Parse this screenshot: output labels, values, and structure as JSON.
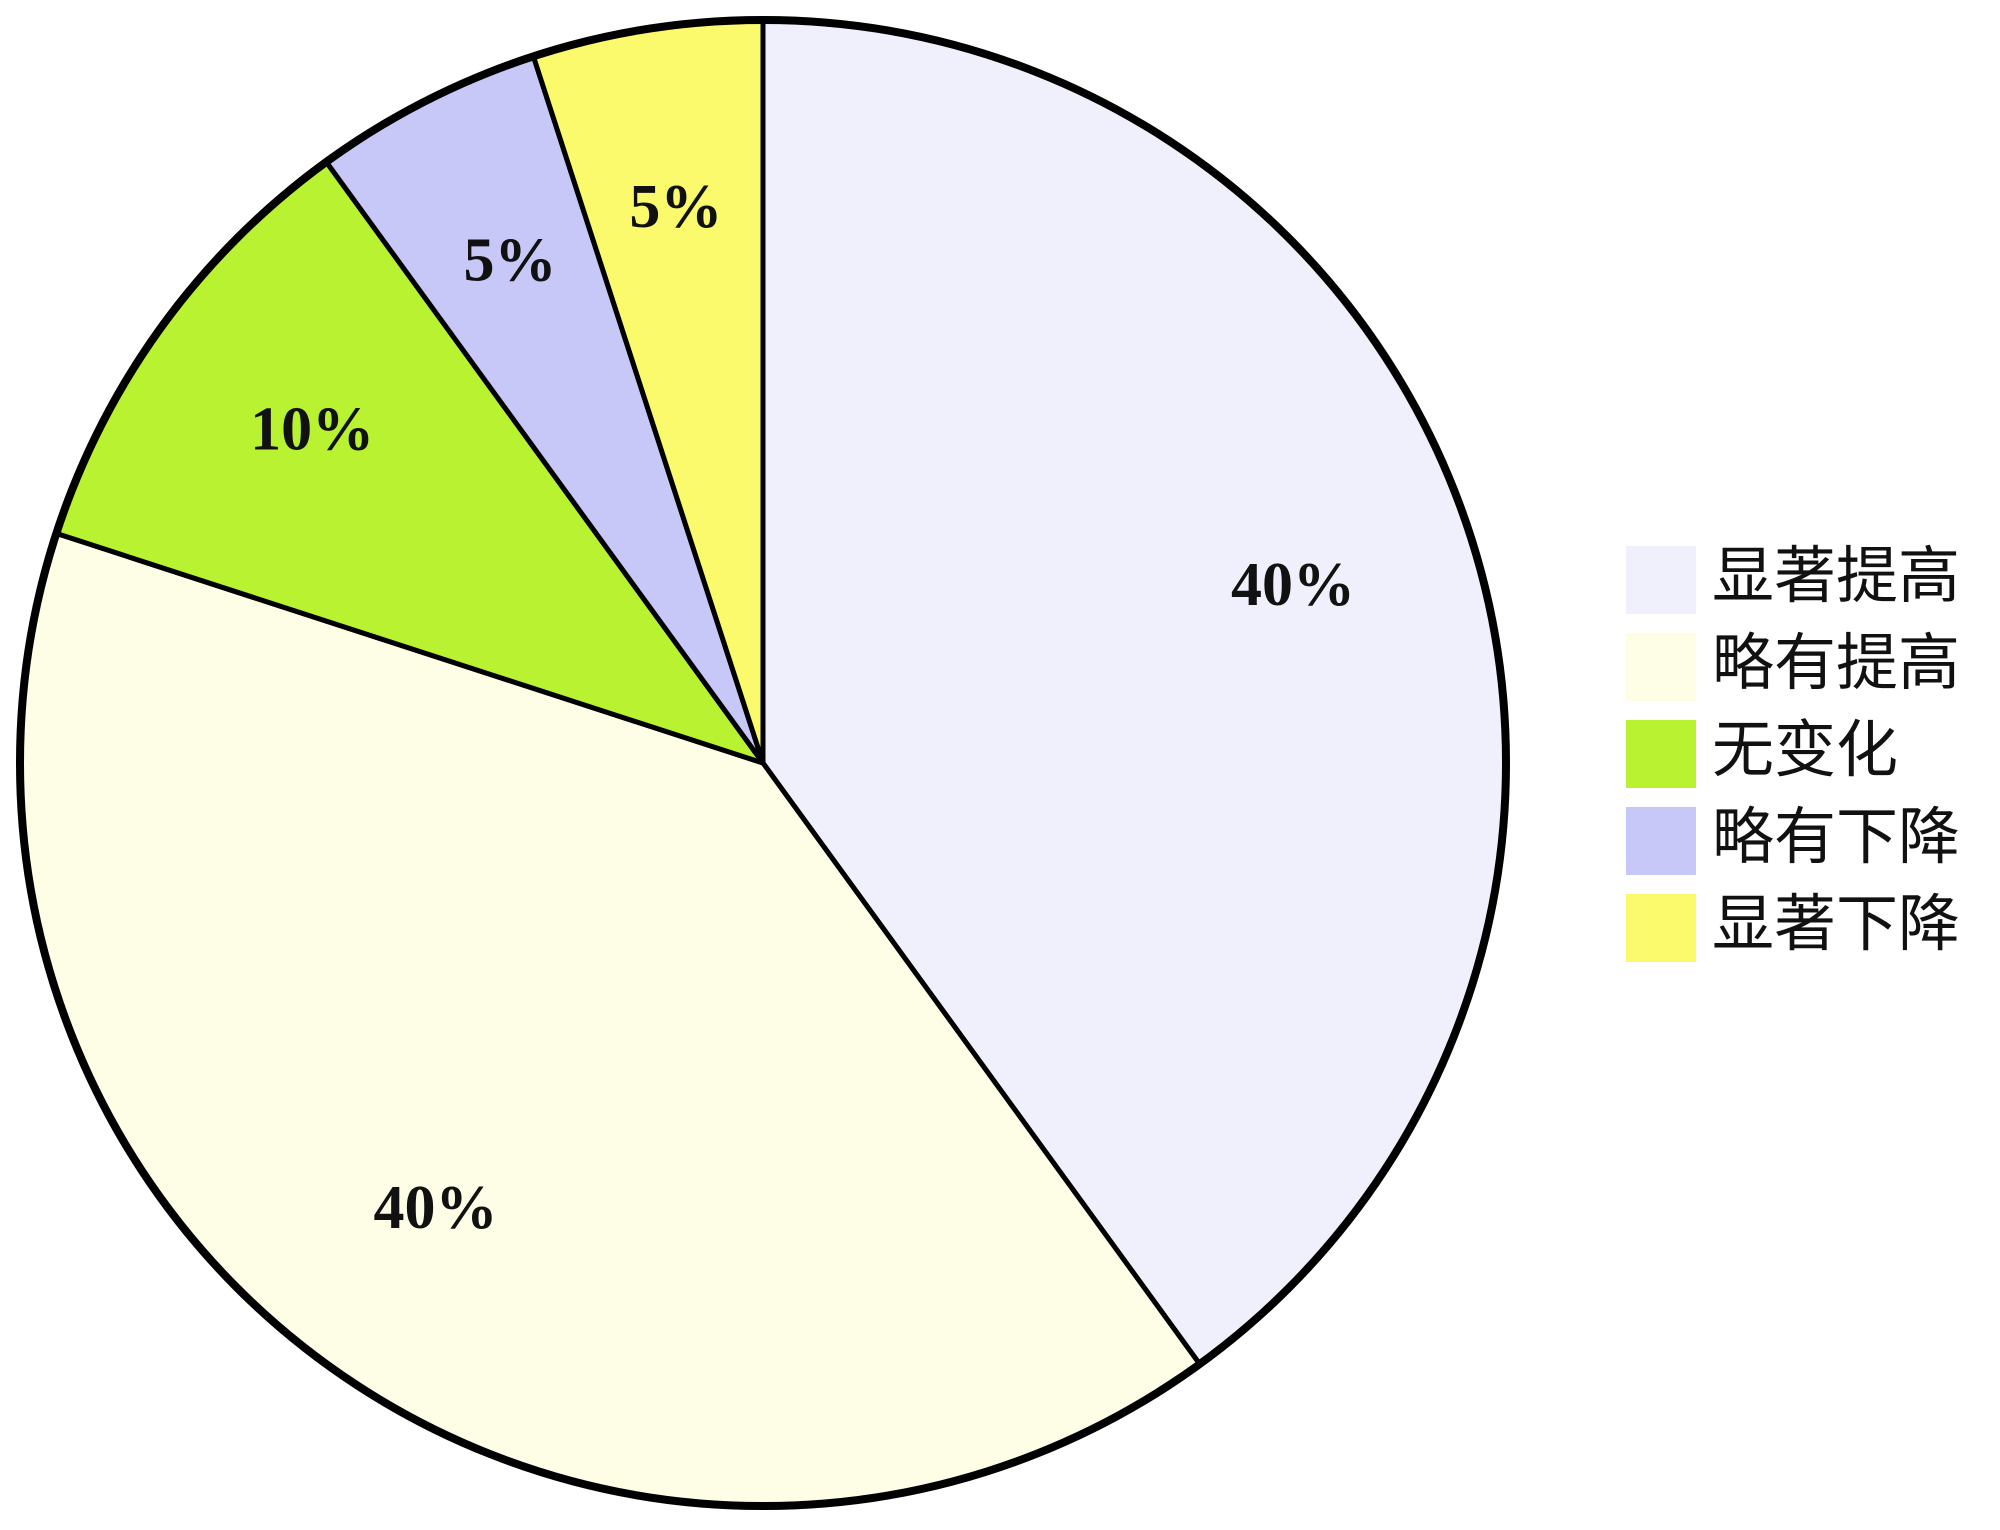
{
  "chart_data": {
    "type": "pie",
    "categories": [
      "显著提高",
      "略有提高",
      "无变化",
      "略有下降",
      "显著下降"
    ],
    "values": [
      40,
      40,
      10,
      5,
      5
    ],
    "value_labels": [
      "40%",
      "40%",
      "10%",
      "5%",
      "5%"
    ],
    "colors": [
      "#f0f0fc",
      "#fefee6",
      "#b8f230",
      "#c8c8f8",
      "#fafa6c"
    ],
    "legend": "right"
  }
}
